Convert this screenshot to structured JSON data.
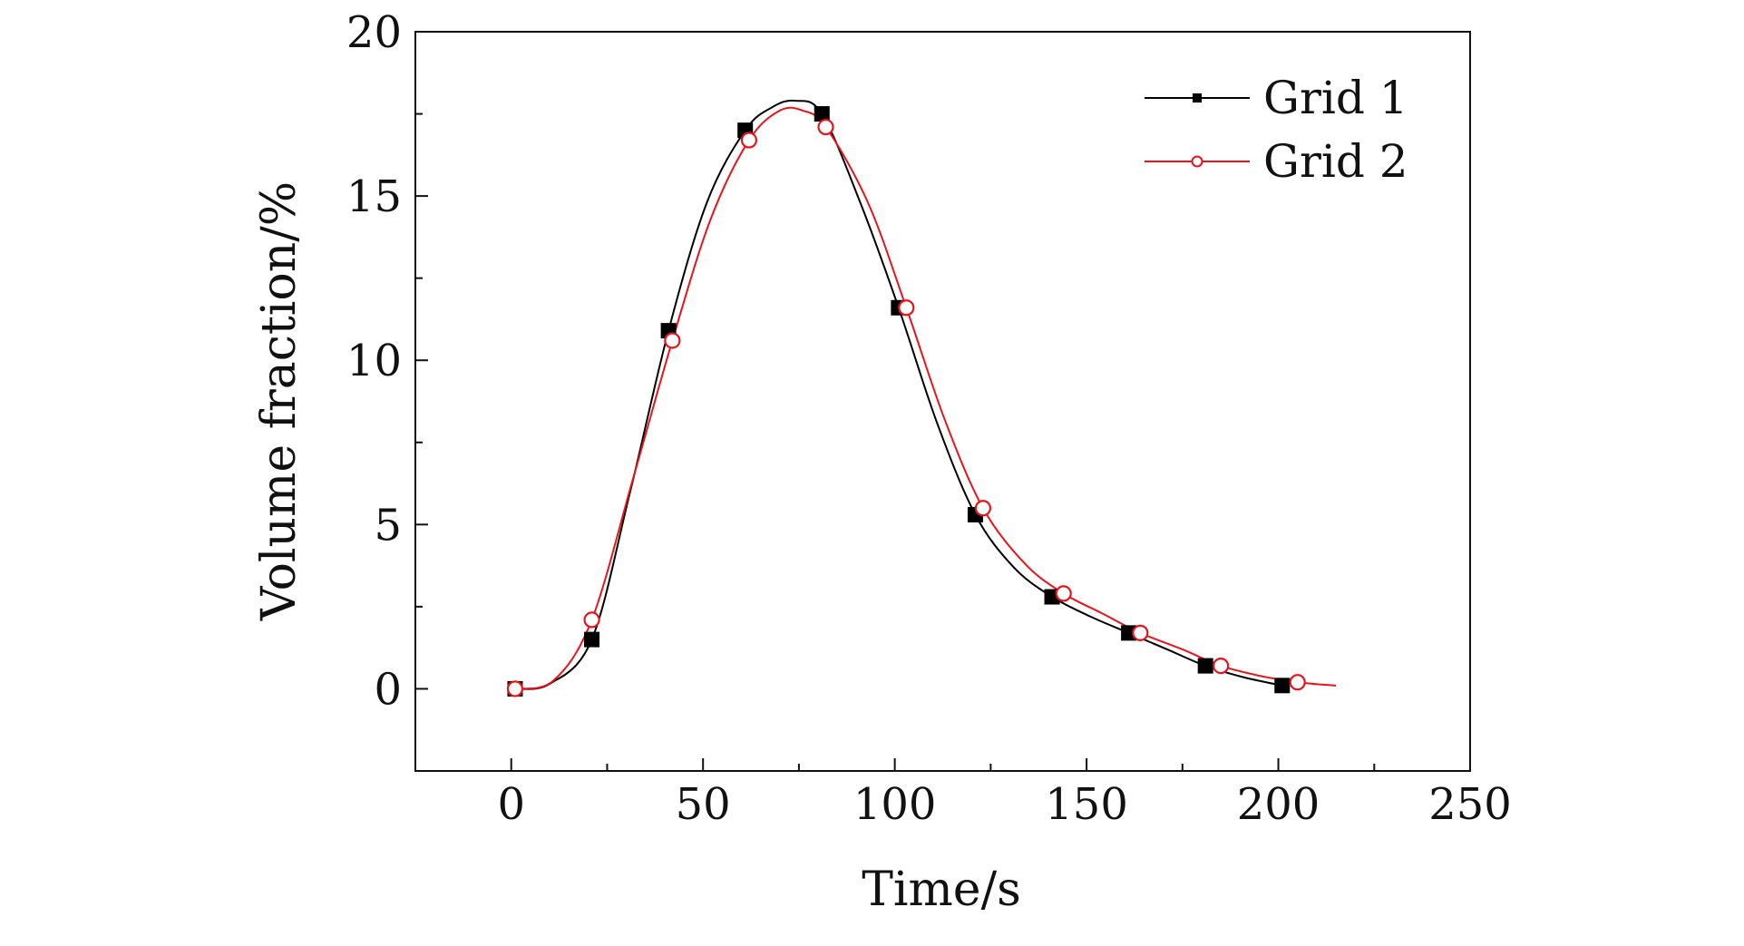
{
  "chart_data": {
    "type": "line",
    "title": "",
    "xlabel": "Time/s",
    "ylabel": "Volume fraction/%",
    "xlim": [
      -25,
      250
    ],
    "ylim": [
      -2.5,
      20
    ],
    "x_ticks": [
      0,
      50,
      100,
      150,
      200,
      250
    ],
    "y_ticks": [
      0,
      5,
      10,
      15,
      20
    ],
    "x_tick_labels": [
      "0",
      "50",
      "100",
      "150",
      "200",
      "250"
    ],
    "y_tick_labels": [
      "0",
      "5",
      "10",
      "15",
      "20"
    ],
    "grid": false,
    "legend_position": "top-right",
    "series": [
      {
        "name": "Grid 1",
        "color": "#000000",
        "marker": "filled-square",
        "x": [
          1,
          21,
          41,
          61,
          81,
          101,
          121,
          141,
          161,
          181,
          201
        ],
        "y": [
          0.0,
          1.5,
          10.9,
          17.0,
          17.5,
          11.6,
          5.3,
          2.8,
          1.7,
          0.7,
          0.1
        ]
      },
      {
        "name": "Grid 2",
        "color": "#e8141c",
        "marker": "open-circle",
        "x": [
          1,
          21,
          42,
          62,
          82,
          103,
          123,
          144,
          164,
          185,
          205
        ],
        "y": [
          0.0,
          2.1,
          10.6,
          16.7,
          17.1,
          11.6,
          5.5,
          2.9,
          1.7,
          0.7,
          0.2
        ]
      }
    ],
    "curves": [
      {
        "name": "Grid 1",
        "x": [
          1,
          10,
          21,
          31,
          41,
          51,
          61,
          68,
          74,
          81,
          91,
          101,
          111,
          121,
          131,
          141,
          151,
          161,
          171,
          181,
          191,
          201
        ],
        "y": [
          0.0,
          0.15,
          1.5,
          6.0,
          10.9,
          14.8,
          17.0,
          17.7,
          17.9,
          17.5,
          14.8,
          11.6,
          8.1,
          5.3,
          3.7,
          2.8,
          2.2,
          1.7,
          1.2,
          0.7,
          0.35,
          0.1
        ]
      },
      {
        "name": "Grid 2",
        "x": [
          1,
          11,
          21,
          32,
          42,
          52,
          62,
          70,
          76,
          82,
          93,
          103,
          113,
          123,
          134,
          144,
          154,
          164,
          175,
          185,
          195,
          205,
          215
        ],
        "y": [
          0.0,
          0.25,
          2.1,
          6.5,
          10.6,
          14.3,
          16.7,
          17.6,
          17.6,
          17.1,
          14.8,
          11.6,
          8.2,
          5.5,
          3.8,
          2.9,
          2.3,
          1.7,
          1.2,
          0.7,
          0.4,
          0.2,
          0.1
        ]
      }
    ]
  }
}
